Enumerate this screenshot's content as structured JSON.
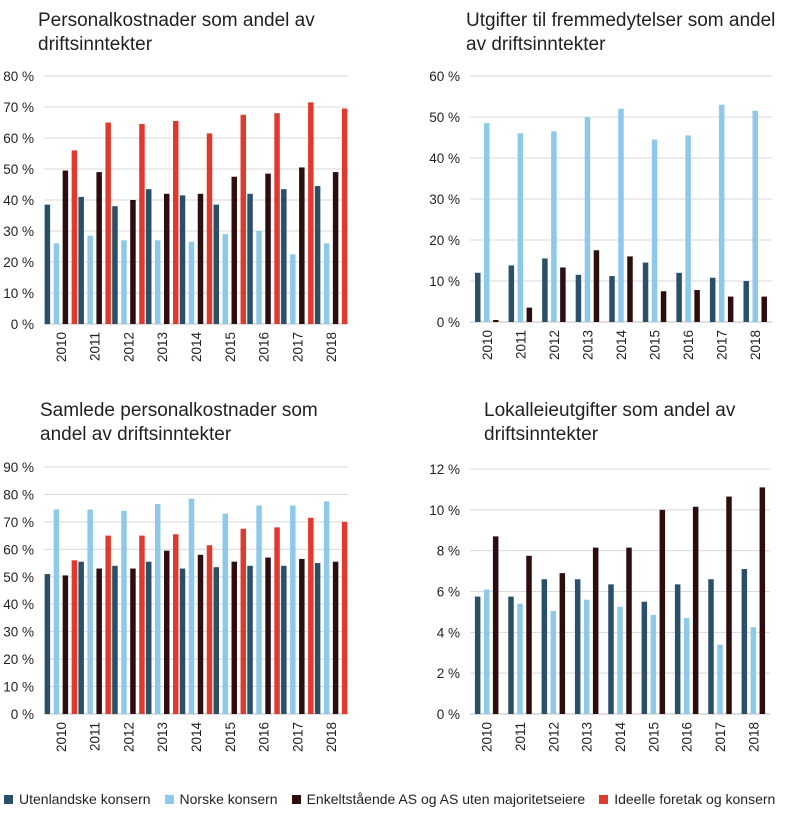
{
  "series_colors": {
    "Utenlandske konsern": "#2a5069",
    "Norske konsern": "#8ec9ea",
    "Enkeltstående AS og AS uten majoritetseiere": "#2c0e0e",
    "Ideelle foretak og konsern": "#e03a2e"
  },
  "legend": {
    "items": [
      {
        "label": "Utenlandske konsern",
        "color": "#2a5069"
      },
      {
        "label": "Norske konsern",
        "color": "#8ec9ea"
      },
      {
        "label": "Enkeltstående AS og AS uten majoritetseiere",
        "color": "#2c0e0e"
      },
      {
        "label": "Ideelle foretak og konsern",
        "color": "#e03a2e"
      }
    ]
  },
  "chart_data": [
    {
      "id": "personal",
      "type": "bar",
      "title_lines": [
        "Personalkostnader som andel av",
        "driftsinntekter"
      ],
      "categories": [
        "2010",
        "2011",
        "2012",
        "2013",
        "2014",
        "2015",
        "2016",
        "2017",
        "2018"
      ],
      "ylim": [
        0,
        80
      ],
      "yticks": [
        0,
        10,
        20,
        30,
        40,
        50,
        60,
        70,
        80
      ],
      "ytick_labels": [
        "0 %",
        "10 %",
        "20 %",
        "30 %",
        "40 %",
        "50 %",
        "60 %",
        "70 %",
        "80 %"
      ],
      "series": [
        {
          "name": "Utenlandske konsern",
          "values": [
            38.5,
            41,
            38,
            43.5,
            41.5,
            38.5,
            42,
            43.5,
            44.5
          ]
        },
        {
          "name": "Norske konsern",
          "values": [
            26,
            28.5,
            27,
            27,
            26.5,
            29,
            30,
            22.5,
            26
          ]
        },
        {
          "name": "Enkeltstående AS og AS uten majoritetseiere",
          "values": [
            49.5,
            49,
            40,
            42,
            42,
            47.5,
            48.5,
            50.5,
            49
          ]
        },
        {
          "name": "Ideelle foretak og konsern",
          "values": [
            56,
            65,
            64.5,
            65.5,
            61.5,
            67.5,
            68,
            71.5,
            69.5
          ]
        }
      ]
    },
    {
      "id": "fremmed",
      "type": "bar",
      "title_lines": [
        "Utgifter til fremmedytelser som andel",
        "av driftsinntekter"
      ],
      "categories": [
        "2010",
        "2011",
        "2012",
        "2013",
        "2014",
        "2015",
        "2016",
        "2017",
        "2018"
      ],
      "ylim": [
        0,
        60
      ],
      "yticks": [
        0,
        10,
        20,
        30,
        40,
        50,
        60
      ],
      "ytick_labels": [
        "0 %",
        "10 %",
        "20 %",
        "30 %",
        "40 %",
        "50 %",
        "60 %"
      ],
      "series": [
        {
          "name": "Utenlandske konsern",
          "values": [
            12,
            13.8,
            15.5,
            11.5,
            11.2,
            14.5,
            12,
            10.8,
            10
          ]
        },
        {
          "name": "Norske konsern",
          "values": [
            48.5,
            46,
            46.5,
            50,
            52,
            44.5,
            45.5,
            53,
            51.5
          ]
        },
        {
          "name": "Enkeltstående AS og AS uten majoritetseiere",
          "values": [
            0.5,
            3.5,
            13.3,
            17.5,
            16,
            7.5,
            7.8,
            6.2,
            6.2
          ]
        }
      ]
    },
    {
      "id": "samlede",
      "type": "bar",
      "title_lines": [
        "Samlede personalkostnader som",
        "andel av driftsinntekter"
      ],
      "categories": [
        "2010",
        "2011",
        "2012",
        "2013",
        "2014",
        "2015",
        "2016",
        "2017",
        "2018"
      ],
      "ylim": [
        0,
        90
      ],
      "yticks": [
        0,
        10,
        20,
        30,
        40,
        50,
        60,
        70,
        80,
        90
      ],
      "ytick_labels": [
        "0 %",
        "10 %",
        "20 %",
        "30 %",
        "40 %",
        "50 %",
        "60 %",
        "70 %",
        "80 %",
        "90 %"
      ],
      "series": [
        {
          "name": "Utenlandske konsern",
          "values": [
            51,
            55.5,
            54,
            55.5,
            53,
            53.5,
            54,
            54,
            55
          ]
        },
        {
          "name": "Norske konsern",
          "values": [
            74.5,
            74.5,
            74,
            76.5,
            78.5,
            73,
            76,
            76,
            77.5
          ]
        },
        {
          "name": "Enkeltstående AS og AS uten majoritetseiere",
          "values": [
            50.5,
            53,
            53,
            59.5,
            58,
            55.5,
            57,
            56.5,
            55.5
          ]
        },
        {
          "name": "Ideelle foretak og konsern",
          "values": [
            56,
            65,
            65,
            65.5,
            61.5,
            67.5,
            68,
            71.5,
            70
          ]
        }
      ]
    },
    {
      "id": "lokale",
      "type": "bar",
      "title_lines": [
        "Lokalleieutgifter som andel av",
        "driftsinntekter"
      ],
      "categories": [
        "2010",
        "2011",
        "2012",
        "2013",
        "2014",
        "2015",
        "2016",
        "2017",
        "2018"
      ],
      "ylim": [
        0,
        12
      ],
      "yticks": [
        0,
        2,
        4,
        6,
        8,
        10,
        12
      ],
      "ytick_labels": [
        "0 %",
        "2 %",
        "4 %",
        "6 %",
        "8 %",
        "10 %",
        "12 %"
      ],
      "series": [
        {
          "name": "Utenlandske konsern",
          "values": [
            5.75,
            5.75,
            6.6,
            6.6,
            6.35,
            5.5,
            6.35,
            6.6,
            7.1
          ]
        },
        {
          "name": "Norske konsern",
          "values": [
            6.1,
            5.4,
            5.05,
            5.6,
            5.25,
            4.85,
            4.7,
            3.4,
            4.25
          ]
        },
        {
          "name": "Enkeltstående AS og AS uten majoritetseiere",
          "values": [
            8.7,
            7.75,
            6.9,
            8.15,
            8.15,
            10,
            10.15,
            10.65,
            11.1
          ]
        }
      ]
    }
  ]
}
